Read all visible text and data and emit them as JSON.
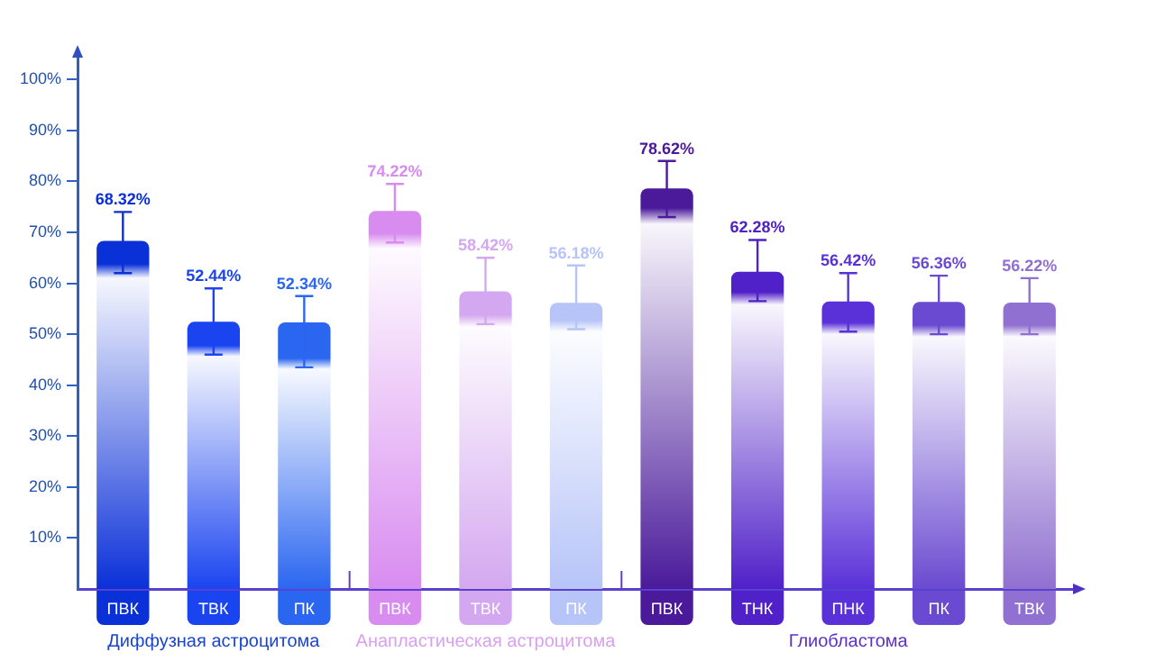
{
  "chart_data": {
    "type": "bar",
    "categories": [
      "ПВК",
      "ТВК",
      "ПК",
      "ПВК",
      "ТВК",
      "ПК",
      "ПВК",
      "ТНК",
      "ПНК",
      "ПК",
      "ТВК"
    ],
    "values": [
      68.32,
      52.44,
      52.34,
      74.22,
      58.42,
      56.18,
      78.62,
      62.28,
      56.42,
      56.36,
      56.22
    ],
    "colors": [
      "#0a30d8",
      "#1a44f0",
      "#2a66f0",
      "#d88cf0",
      "#d4a8f0",
      "#b6c4f8",
      "#4a1a9a",
      "#5020c8",
      "#5a30d8",
      "#6a4ad0",
      "#9070d0"
    ],
    "errors": [
      [
        62,
        74
      ],
      [
        46,
        59
      ],
      [
        43.5,
        57.5
      ],
      [
        68,
        79.5
      ],
      [
        52,
        65
      ],
      [
        51,
        63.5
      ],
      [
        73,
        84
      ],
      [
        56.5,
        68.5
      ],
      [
        50.5,
        62
      ],
      [
        50,
        61.5
      ],
      [
        50,
        61
      ]
    ],
    "data_labels": true,
    "value_labels": [
      "68.32%",
      "52.44%",
      "52.34%",
      "74.22%",
      "58.42%",
      "56.18%",
      "78.62%",
      "62.28%",
      "56.42%",
      "56.36%",
      "56.22%"
    ],
    "ylim": [
      0,
      105
    ],
    "yticks": [
      {
        "value": 10,
        "label": "10%"
      },
      {
        "value": 20,
        "label": "20%"
      },
      {
        "value": 30,
        "label": "30%"
      },
      {
        "value": 40,
        "label": "40%"
      },
      {
        "value": 50,
        "label": "50%"
      },
      {
        "value": 60,
        "label": "60%"
      },
      {
        "value": 70,
        "label": "70%"
      },
      {
        "value": 80,
        "label": "80%"
      },
      {
        "value": 90,
        "label": "90%"
      },
      {
        "value": 100,
        "label": "100%"
      }
    ],
    "annotations": [
      "Диффузная астроцитома",
      "Анапластическая астроцитома",
      "Глиобластома"
    ],
    "grid": false,
    "legend": false
  }
}
